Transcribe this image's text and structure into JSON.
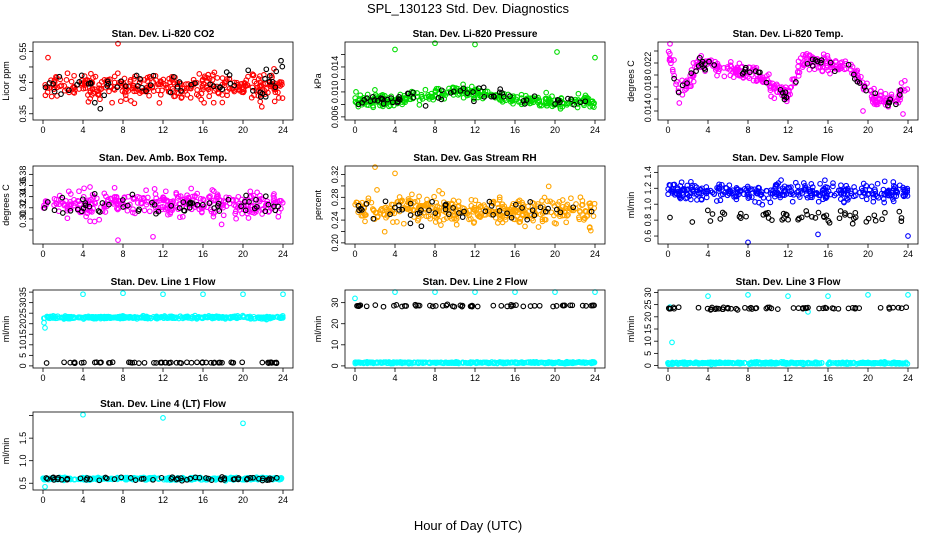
{
  "page": {
    "title": "SPL_130123  Std. Dev. Diagnostics",
    "xlabel": "Hour of Day (UTC)"
  },
  "chart_data": [
    {
      "id": "li820-co2",
      "type": "scatter",
      "title": "Stan. Dev. Li-820 CO2",
      "ylabel": "Licor ppm",
      "xlim": [
        -1,
        25
      ],
      "xticks": [
        0,
        4,
        8,
        12,
        16,
        20,
        24
      ],
      "ylim": [
        0.33,
        0.58
      ],
      "yticks": [
        0.35,
        0.4,
        0.45,
        0.5,
        0.55
      ],
      "ytick_labels": [
        "0.35",
        "",
        "0.45",
        "",
        "0.55"
      ],
      "series": [
        {
          "color": "#ff0000",
          "n": 340,
          "mean": 0.435,
          "spread": 0.035,
          "outliers": [
            [
              7.5,
              0.575
            ],
            [
              0.5,
              0.53
            ]
          ]
        },
        {
          "color": "#000000",
          "n": 60,
          "mean": 0.44,
          "spread": 0.04,
          "outliers": [
            [
              23.8,
              0.52
            ]
          ]
        }
      ]
    },
    {
      "id": "li820-pressure",
      "type": "scatter",
      "title": "Stan. Dev. Li-820 Pressure",
      "ylabel": "kPa",
      "xlim": [
        -1,
        25
      ],
      "xticks": [
        0,
        4,
        8,
        12,
        16,
        20,
        24
      ],
      "ylim": [
        0.0055,
        0.018
      ],
      "yticks": [
        0.006,
        0.008,
        0.01,
        0.012,
        0.014,
        0.016
      ],
      "ytick_labels": [
        "0.006",
        "",
        "0.010",
        "",
        "0.014",
        ""
      ],
      "series": [
        {
          "color": "#00dd00",
          "n": 340,
          "mean": 0.0085,
          "spread": 0.0008,
          "hump": 0.0016,
          "outliers": [
            [
              4,
              0.0168
            ],
            [
              8,
              0.0178
            ],
            [
              12,
              0.0176
            ],
            [
              20.2,
              0.0164
            ],
            [
              24,
              0.0155
            ],
            [
              0.1,
              0.01
            ]
          ]
        },
        {
          "color": "#000000",
          "n": 60,
          "mean": 0.0085,
          "spread": 0.0009,
          "hump": 0.0015,
          "outliers": []
        }
      ]
    },
    {
      "id": "li820-temp",
      "type": "line-scatter",
      "title": "Stan. Dev. Li-820 Temp.",
      "ylabel": "degrees C",
      "xlim": [
        -1,
        25
      ],
      "xticks": [
        0,
        4,
        8,
        12,
        16,
        20,
        24
      ],
      "ylim": [
        0.0125,
        0.0255
      ],
      "yticks": [
        0.014,
        0.016,
        0.018,
        0.02,
        0.022,
        0.024
      ],
      "ytick_labels": [
        "0.014",
        "",
        "0.018",
        "",
        "0.022",
        ""
      ],
      "profile": [
        [
          0,
          0.024
        ],
        [
          1,
          0.017
        ],
        [
          2,
          0.019
        ],
        [
          3,
          0.0215
        ],
        [
          4,
          0.022
        ],
        [
          5,
          0.0215
        ],
        [
          6,
          0.021
        ],
        [
          7.5,
          0.0205
        ],
        [
          9,
          0.0205
        ],
        [
          10,
          0.0185
        ],
        [
          11,
          0.0175
        ],
        [
          12,
          0.0165
        ],
        [
          13,
          0.0205
        ],
        [
          14,
          0.0225
        ],
        [
          15,
          0.022
        ],
        [
          16,
          0.0215
        ],
        [
          18,
          0.022
        ],
        [
          19,
          0.0195
        ],
        [
          20,
          0.017
        ],
        [
          21,
          0.016
        ],
        [
          22,
          0.0155
        ],
        [
          23,
          0.0162
        ],
        [
          24,
          0.019
        ]
      ],
      "series": [
        {
          "color": "#ff00ff",
          "n": 340,
          "spread": 0.0007,
          "outliers": [
            [
              0.2,
              0.0252
            ],
            [
              0.6,
              0.0225
            ],
            [
              23.5,
              0.0135
            ],
            [
              19.5,
              0.014
            ]
          ]
        },
        {
          "color": "#000000",
          "n": 55,
          "spread": 0.0005,
          "outliers": []
        }
      ]
    },
    {
      "id": "amb-box-temp",
      "type": "scatter",
      "title": "Stan. Dev. Amb. Box Temp.",
      "ylabel": "degrees C",
      "xlim": [
        -1,
        25
      ],
      "xticks": [
        0,
        4,
        8,
        12,
        16,
        20,
        24
      ],
      "ylim": [
        0.255,
        0.395
      ],
      "yticks": [
        0.28,
        0.3,
        0.32,
        0.34,
        0.36,
        0.38
      ],
      "ytick_labels": [
        "",
        "0.30",
        "0.32",
        "0.34",
        "0.36",
        "0.38"
      ],
      "series": [
        {
          "color": "#ff00ff",
          "n": 340,
          "mean": 0.327,
          "spread": 0.02,
          "outliers": [
            [
              7.5,
              0.262
            ],
            [
              11,
              0.268
            ]
          ]
        },
        {
          "color": "#000000",
          "n": 60,
          "mean": 0.325,
          "spread": 0.015,
          "outliers": []
        }
      ]
    },
    {
      "id": "gas-stream-rh",
      "type": "scatter",
      "title": "Stan. Dev. Gas Stream RH",
      "ylabel": "percent",
      "xlim": [
        -1,
        25
      ],
      "xticks": [
        0,
        4,
        8,
        12,
        16,
        20,
        24
      ],
      "ylim": [
        0.198,
        0.335
      ],
      "yticks": [
        0.2,
        0.22,
        0.24,
        0.26,
        0.28,
        0.3,
        0.32
      ],
      "ytick_labels": [
        "0.20",
        "",
        "0.24",
        "",
        "0.28",
        "",
        "0.32"
      ],
      "series": [
        {
          "color": "#ffa500",
          "n": 380,
          "mean": 0.257,
          "spread": 0.02,
          "outliers": [
            [
              2,
              0.333
            ],
            [
              4,
              0.322
            ]
          ]
        },
        {
          "color": "#000000",
          "n": 50,
          "mean": 0.258,
          "spread": 0.016,
          "outliers": []
        }
      ]
    },
    {
      "id": "sample-flow",
      "type": "scatter",
      "title": "Stan. Dev. Sample Flow",
      "ylabel": "ml/min",
      "xlim": [
        -1,
        25
      ],
      "xticks": [
        0,
        4,
        8,
        12,
        16,
        20,
        24
      ],
      "ylim": [
        0.5,
        1.48
      ],
      "yticks": [
        0.6,
        0.8,
        1.0,
        1.2,
        1.4
      ],
      "ytick_labels": [
        "0.6",
        "0.8",
        "1.0",
        "1.2",
        "1.4"
      ],
      "series": [
        {
          "color": "#0000ff",
          "n": 340,
          "mean": 1.15,
          "spread": 0.09,
          "outliers": [
            [
              8,
              0.52
            ],
            [
              24,
              0.6
            ],
            [
              15,
              0.62
            ]
          ]
        },
        {
          "color": "#000000",
          "n": 55,
          "mean": 0.85,
          "spread": 0.07,
          "outliers": []
        }
      ]
    },
    {
      "id": "line1-flow",
      "type": "scatter",
      "title": "Stan. Dev. Line 1 Flow",
      "ylabel": "ml/min",
      "xlim": [
        -1,
        25
      ],
      "xticks": [
        0,
        4,
        8,
        12,
        16,
        20,
        24
      ],
      "ylim": [
        -1,
        36
      ],
      "yticks": [
        0,
        5,
        10,
        15,
        20,
        25,
        30,
        35
      ],
      "ytick_labels": [
        "0",
        "5",
        "10",
        "15",
        "20",
        "25",
        "30",
        "35"
      ],
      "series": [
        {
          "color": "#00ffff",
          "n": 360,
          "mean": 23,
          "spread": 0.5,
          "outliers": [
            [
              4,
              34
            ],
            [
              8,
              34.5
            ],
            [
              12,
              34
            ],
            [
              16,
              34
            ],
            [
              20,
              34
            ],
            [
              24,
              34
            ],
            [
              0.2,
              18
            ],
            [
              0.1,
              20.5
            ]
          ]
        },
        {
          "color": "#000000",
          "n": 60,
          "mean": 1.5,
          "spread": 0.2,
          "outliers": []
        }
      ]
    },
    {
      "id": "line2-flow",
      "type": "scatter",
      "title": "Stan. Dev. Line 2 Flow",
      "ylabel": "ml/min",
      "xlim": [
        -1,
        25
      ],
      "xticks": [
        0,
        4,
        8,
        12,
        16,
        20,
        24
      ],
      "ylim": [
        -1,
        36
      ],
      "yticks": [
        0,
        10,
        20,
        30
      ],
      "ytick_labels": [
        "0",
        "10",
        "20",
        "30"
      ],
      "series": [
        {
          "color": "#00ffff",
          "n": 360,
          "mean": 1.5,
          "spread": 0.3,
          "outliers": [
            [
              0,
              32
            ],
            [
              4,
              35
            ],
            [
              8,
              35
            ],
            [
              12,
              35
            ],
            [
              16,
              35
            ],
            [
              20,
              35
            ],
            [
              24,
              35
            ]
          ]
        },
        {
          "color": "#000000",
          "n": 60,
          "mean": 28.5,
          "spread": 0.4,
          "outliers": []
        }
      ]
    },
    {
      "id": "line3-flow",
      "type": "scatter",
      "title": "Stan. Dev. Line 3 Flow",
      "ylabel": "ml/min",
      "xlim": [
        -1,
        25
      ],
      "xticks": [
        0,
        4,
        8,
        12,
        16,
        20,
        24
      ],
      "ylim": [
        -1,
        31
      ],
      "yticks": [
        0,
        5,
        10,
        15,
        20,
        25,
        30
      ],
      "ytick_labels": [
        "0",
        "5",
        "10",
        "15",
        "20",
        "25",
        "30"
      ],
      "series": [
        {
          "color": "#00ffff",
          "n": 360,
          "mean": 1.0,
          "spread": 0.3,
          "outliers": [
            [
              0.2,
              24
            ],
            [
              0.4,
              9.5
            ],
            [
              4,
              28.5
            ],
            [
              8,
              29
            ],
            [
              12,
              28.5
            ],
            [
              16,
              28.5
            ],
            [
              20,
              29
            ],
            [
              24,
              29
            ],
            [
              14,
              22
            ]
          ]
        },
        {
          "color": "#000000",
          "n": 60,
          "mean": 23.5,
          "spread": 0.4,
          "outliers": []
        }
      ]
    },
    {
      "id": "line4-flow",
      "type": "scatter",
      "title": "Stan. Dev. Line 4 (LT) Flow",
      "ylabel": "ml/min",
      "xlim": [
        -1,
        25
      ],
      "xticks": [
        0,
        4,
        8,
        12,
        16,
        20,
        24
      ],
      "ylim": [
        0.35,
        2.08
      ],
      "yticks": [
        0.5,
        1.0,
        1.5,
        2.0
      ],
      "ytick_labels": [
        "0.5",
        "1.0",
        "1.5",
        ""
      ],
      "series": [
        {
          "color": "#00ffff",
          "n": 340,
          "mean": 0.6,
          "spread": 0.025,
          "outliers": [
            [
              4,
              2.02
            ],
            [
              12,
              1.95
            ],
            [
              20,
              1.83
            ],
            [
              0.2,
              0.42
            ]
          ]
        },
        {
          "color": "#000000",
          "n": 60,
          "mean": 0.6,
          "spread": 0.03,
          "outliers": []
        }
      ]
    }
  ]
}
